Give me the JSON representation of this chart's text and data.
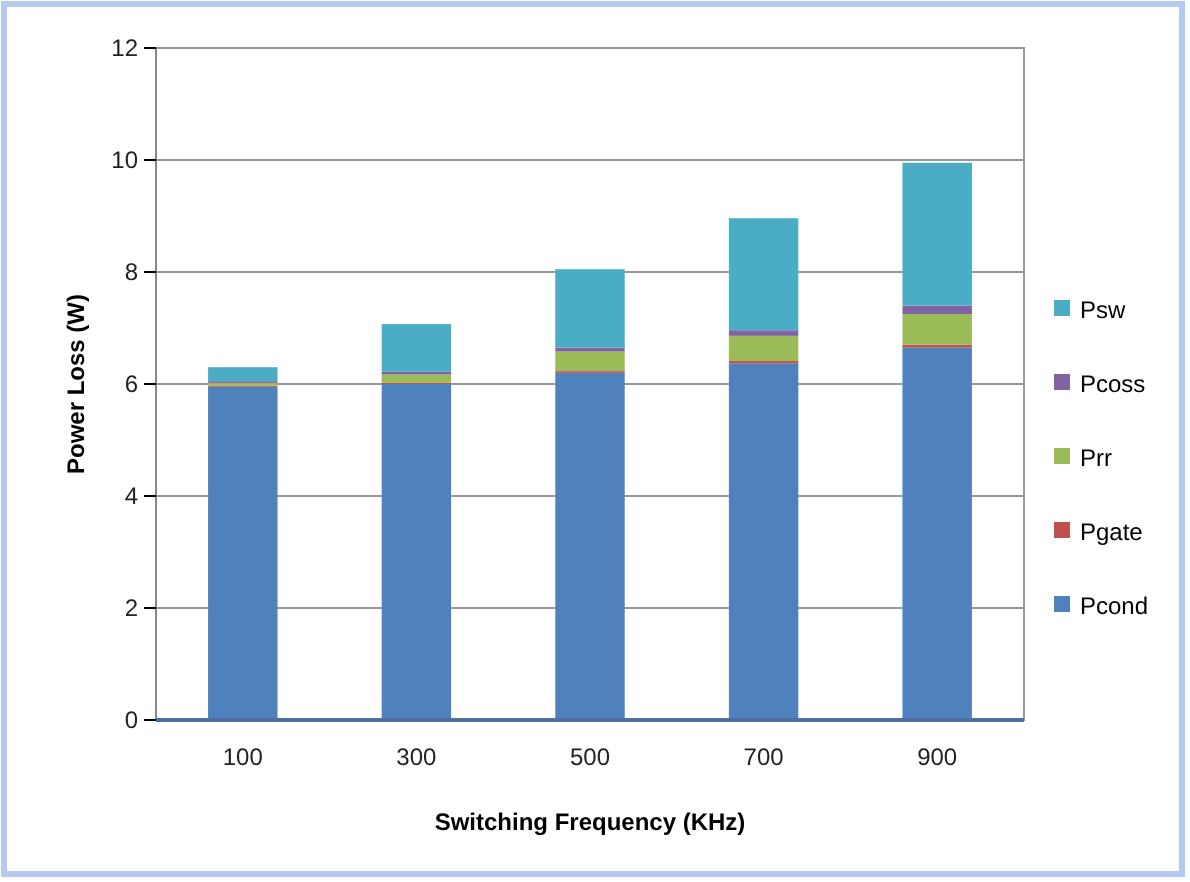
{
  "chart_data": {
    "type": "bar",
    "stacked": true,
    "xlabel": "Switching Frequency (KHz)",
    "ylabel": "Power Loss (W)",
    "categories": [
      "100",
      "300",
      "500",
      "700",
      "900"
    ],
    "series": [
      {
        "name": "Pcond",
        "color": "#4f81bd",
        "values": [
          5.95,
          6.0,
          6.2,
          6.37,
          6.65
        ]
      },
      {
        "name": "Pgate",
        "color": "#c0504d",
        "values": [
          0.02,
          0.02,
          0.03,
          0.04,
          0.05
        ]
      },
      {
        "name": "Prr",
        "color": "#9bbb59",
        "values": [
          0.05,
          0.15,
          0.35,
          0.45,
          0.55
        ]
      },
      {
        "name": "Pcoss",
        "color": "#8064a2",
        "values": [
          0.03,
          0.05,
          0.07,
          0.1,
          0.15
        ]
      },
      {
        "name": "Psw",
        "color": "#4bacc6",
        "values": [
          0.25,
          0.85,
          1.4,
          2.0,
          2.55
        ]
      }
    ],
    "ylim": [
      0,
      12
    ],
    "yticks": [
      0,
      2,
      4,
      6,
      8,
      10,
      12
    ],
    "grid": "y",
    "legend": "right"
  }
}
